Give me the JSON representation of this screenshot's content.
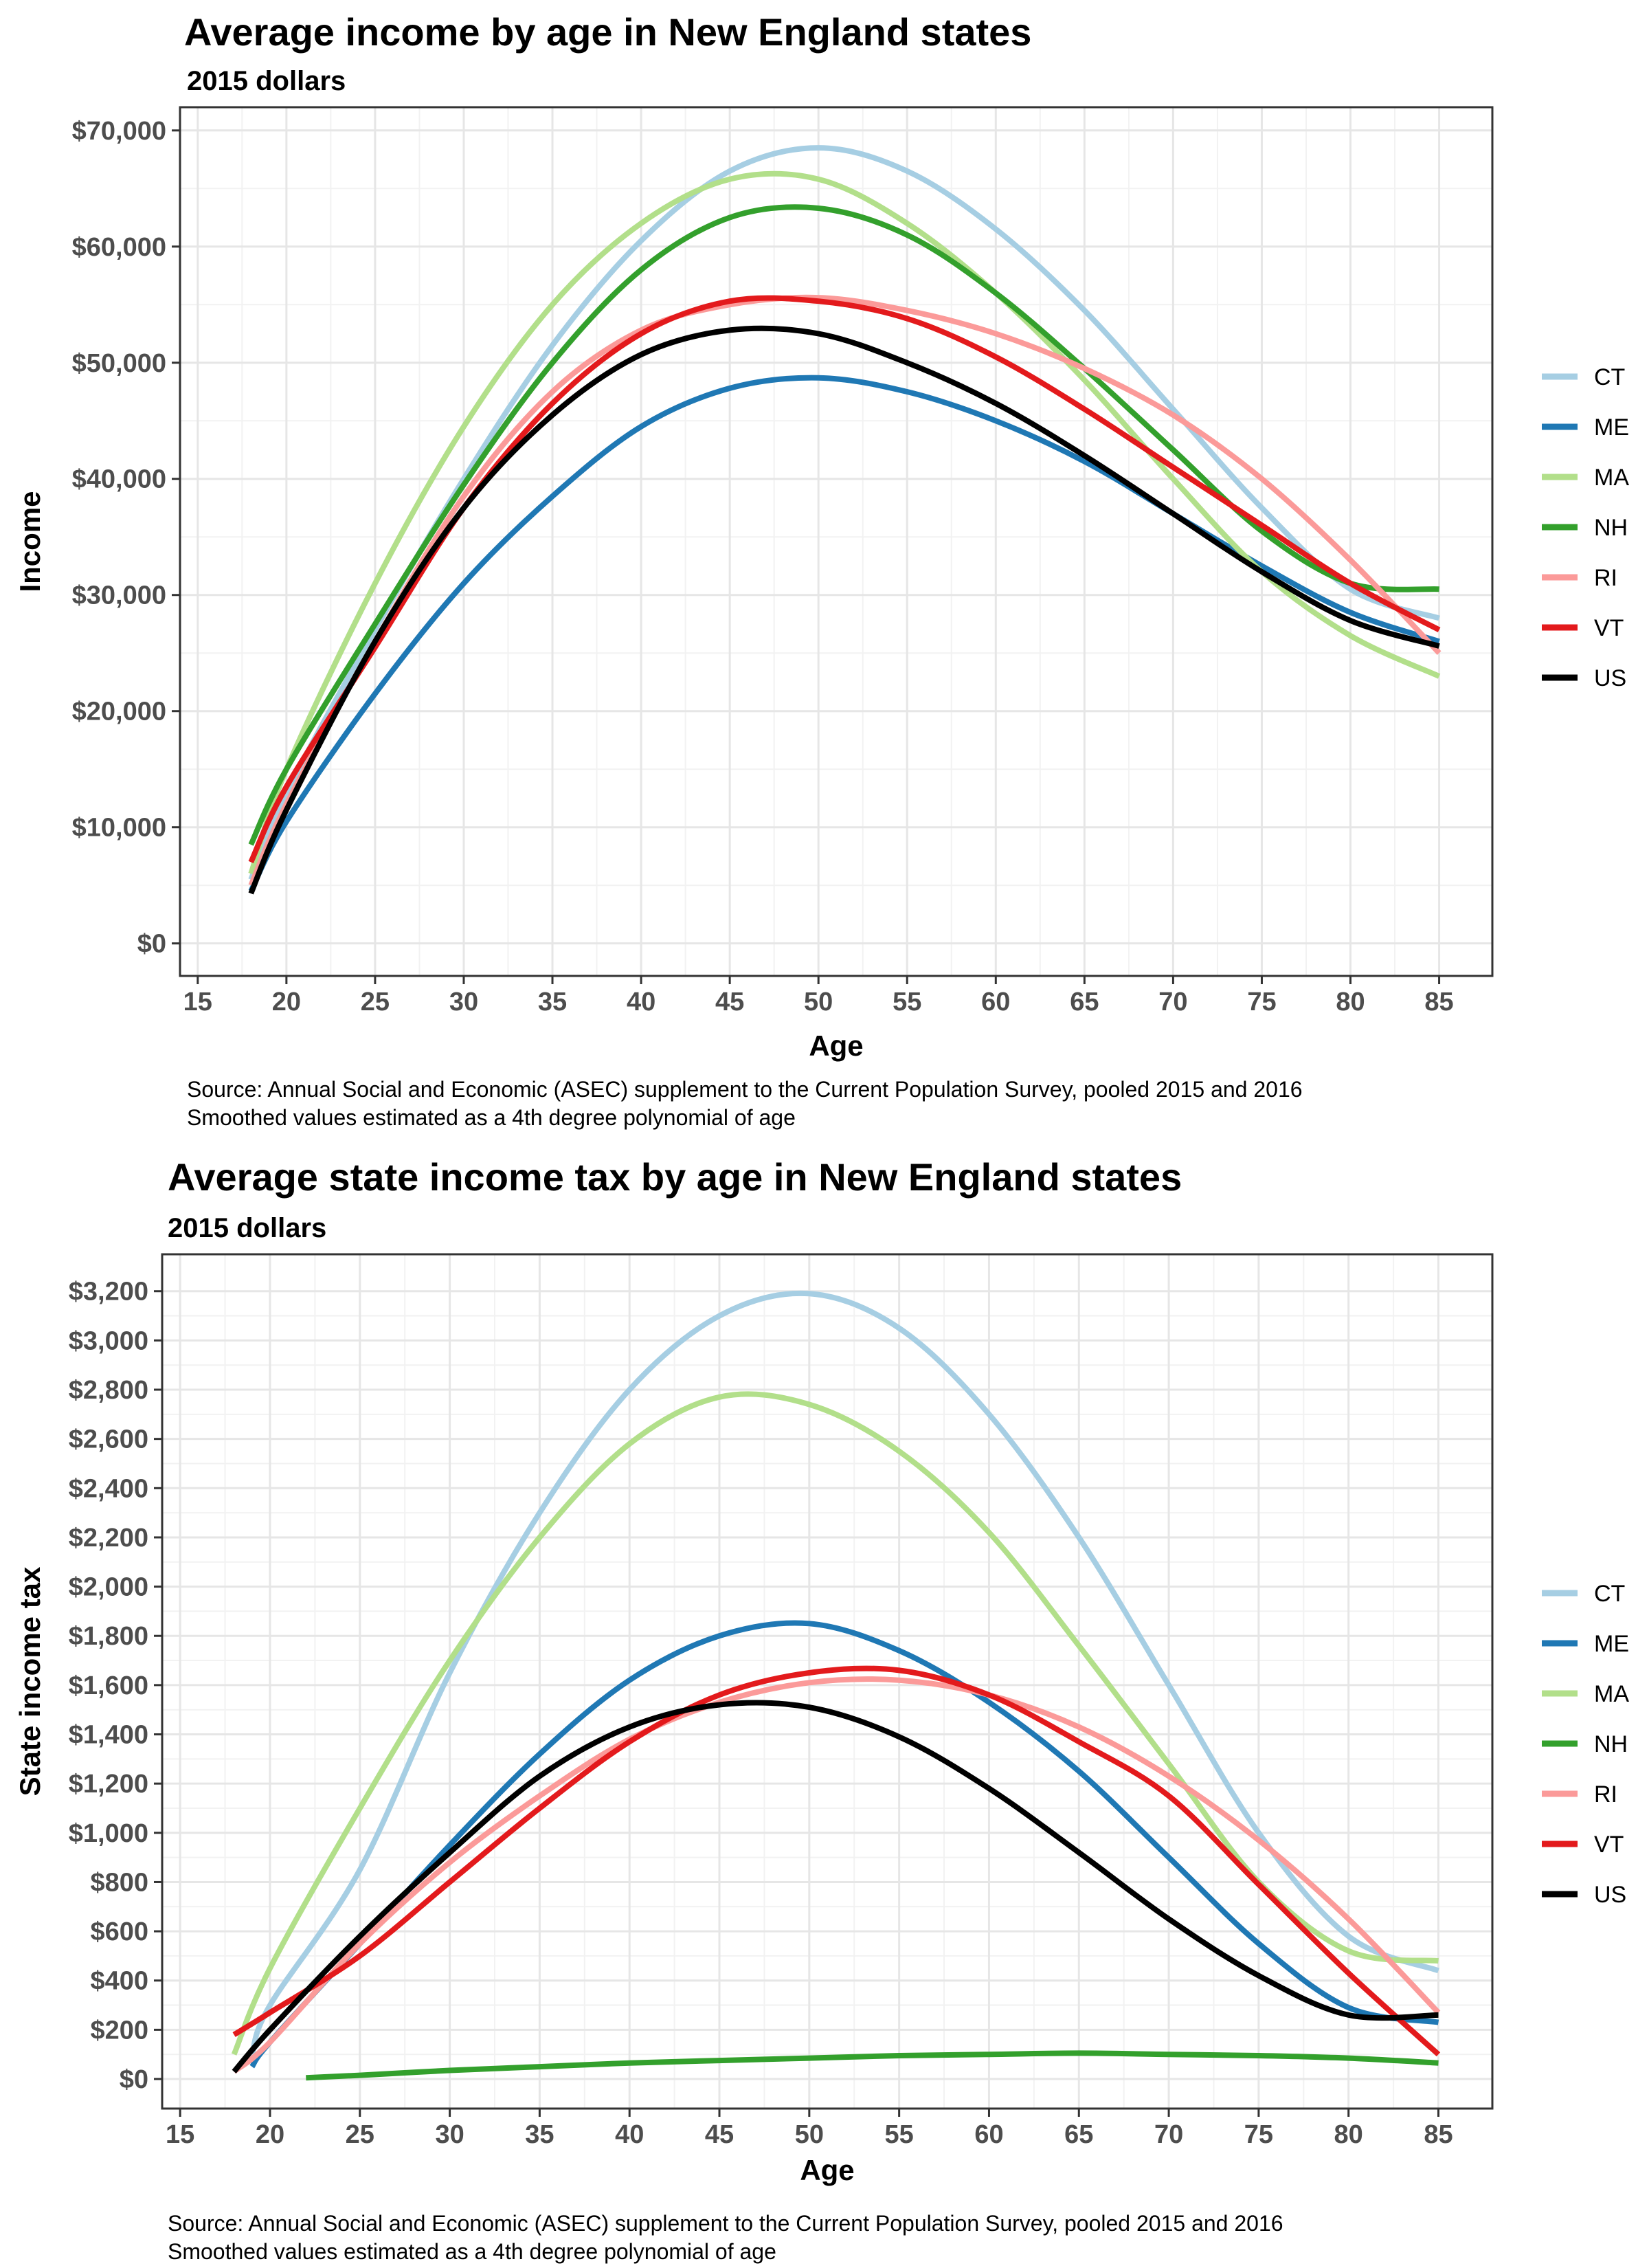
{
  "chart_data": [
    {
      "type": "line",
      "title": "Average income by age in New England states",
      "subtitle": "2015 dollars",
      "xlabel": "Age",
      "ylabel": "Income",
      "xlim": [
        14,
        88
      ],
      "ylim": [
        -2800,
        72000
      ],
      "xticks": [
        15,
        20,
        25,
        30,
        35,
        40,
        45,
        50,
        55,
        60,
        65,
        70,
        75,
        80,
        85
      ],
      "yticks": [
        0,
        10000,
        20000,
        30000,
        40000,
        50000,
        60000,
        70000
      ],
      "ytick_labels": [
        "$0",
        "$10,000",
        "$20,000",
        "$30,000",
        "$40,000",
        "$50,000",
        "$60,000",
        "$70,000"
      ],
      "grid": true,
      "legend": "right",
      "caption": [
        "Source: Annual Social and Economic (ASEC) supplement to the Current Population Survey, pooled 2015 and 2016",
        "Smoothed values estimated as a 4th degree polynomial of age"
      ],
      "series": [
        {
          "name": "CT",
          "color": "#a6cee3",
          "x": [
            18,
            20,
            25,
            30,
            35,
            40,
            45,
            50,
            55,
            60,
            65,
            70,
            75,
            80,
            85
          ],
          "y": [
            5500,
            13000,
            27000,
            40000,
            51500,
            60500,
            66500,
            68500,
            66500,
            61500,
            54500,
            46000,
            37500,
            30500,
            28000
          ]
        },
        {
          "name": "ME",
          "color": "#1f78b4",
          "x": [
            18,
            20,
            25,
            30,
            35,
            40,
            45,
            50,
            55,
            60,
            65,
            70,
            75,
            80,
            85
          ],
          "y": [
            4500,
            10500,
            21500,
            31000,
            38500,
            44500,
            47800,
            48700,
            47500,
            45000,
            41500,
            37000,
            32500,
            28500,
            26000
          ]
        },
        {
          "name": "MA",
          "color": "#b2df8a",
          "x": [
            18,
            20,
            25,
            30,
            35,
            40,
            45,
            50,
            55,
            60,
            65,
            70,
            75,
            80,
            85
          ],
          "y": [
            6000,
            15000,
            31000,
            44500,
            55000,
            62000,
            65800,
            65800,
            62000,
            56000,
            48500,
            40000,
            32000,
            26500,
            23000
          ]
        },
        {
          "name": "NH",
          "color": "#33a02c",
          "x": [
            18,
            20,
            25,
            30,
            35,
            40,
            45,
            50,
            55,
            60,
            65,
            70,
            75,
            80,
            85
          ],
          "y": [
            8500,
            15000,
            27500,
            39500,
            50000,
            58000,
            62500,
            63300,
            61000,
            56000,
            49500,
            42500,
            35500,
            31000,
            30500
          ]
        },
        {
          "name": "RI",
          "color": "#fb9a99",
          "x": [
            18,
            20,
            25,
            30,
            35,
            40,
            45,
            50,
            55,
            60,
            65,
            70,
            75,
            80,
            85
          ],
          "y": [
            5000,
            12000,
            26000,
            38500,
            47500,
            52800,
            55000,
            55600,
            54500,
            52500,
            49500,
            45500,
            40000,
            33000,
            25000
          ]
        },
        {
          "name": "VT",
          "color": "#e31a1c",
          "x": [
            18,
            20,
            25,
            30,
            35,
            40,
            45,
            50,
            55,
            60,
            65,
            70,
            75,
            80,
            85
          ],
          "y": [
            7000,
            13500,
            25500,
            37500,
            46500,
            52500,
            55300,
            55300,
            53800,
            50500,
            46000,
            41000,
            36000,
            31000,
            27000
          ]
        },
        {
          "name": "US",
          "color": "#000000",
          "x": [
            18,
            20,
            25,
            30,
            35,
            40,
            45,
            50,
            55,
            60,
            65,
            70,
            75,
            80,
            85
          ],
          "y": [
            4300,
            11500,
            26000,
            37500,
            45500,
            50700,
            52800,
            52500,
            50000,
            46500,
            42000,
            37000,
            32000,
            27800,
            25600
          ]
        }
      ]
    },
    {
      "type": "line",
      "title": "Average state income tax by age in New England states",
      "subtitle": "2015 dollars",
      "xlabel": "Age",
      "ylabel": "State income tax",
      "xlim": [
        14,
        88
      ],
      "ylim": [
        -120,
        3350
      ],
      "xticks": [
        15,
        20,
        25,
        30,
        35,
        40,
        45,
        50,
        55,
        60,
        65,
        70,
        75,
        80,
        85
      ],
      "yticks": [
        0,
        200,
        400,
        600,
        800,
        1000,
        1200,
        1400,
        1600,
        1800,
        2000,
        2200,
        2400,
        2600,
        2800,
        3000,
        3200
      ],
      "ytick_labels": [
        "$0",
        "$200",
        "$400",
        "$600",
        "$800",
        "$1,000",
        "$1,200",
        "$1,400",
        "$1,600",
        "$1,800",
        "$2,000",
        "$2,200",
        "$2,400",
        "$2,600",
        "$2,800",
        "$3,000",
        "$3,200"
      ],
      "grid": true,
      "legend": "right",
      "caption": [
        "Source: Annual Social and Economic (ASEC) supplement to the Current Population Survey, pooled 2015 and 2016",
        "Smoothed values estimated as a 4th degree polynomial of age"
      ],
      "series": [
        {
          "name": "CT",
          "color": "#a6cee3",
          "x": [
            19,
            20,
            25,
            30,
            35,
            40,
            45,
            50,
            55,
            60,
            65,
            70,
            75,
            80,
            85
          ],
          "y": [
            100,
            300,
            850,
            1650,
            2300,
            2800,
            3100,
            3190,
            3050,
            2700,
            2200,
            1600,
            1000,
            580,
            440
          ]
        },
        {
          "name": "ME",
          "color": "#1f78b4",
          "x": [
            19,
            20,
            25,
            30,
            35,
            40,
            45,
            50,
            55,
            60,
            65,
            70,
            75,
            80,
            85
          ],
          "y": [
            50,
            150,
            550,
            950,
            1320,
            1620,
            1800,
            1850,
            1740,
            1530,
            1250,
            900,
            550,
            290,
            230
          ]
        },
        {
          "name": "MA",
          "color": "#b2df8a",
          "x": [
            18,
            20,
            25,
            30,
            35,
            40,
            45,
            50,
            55,
            60,
            65,
            70,
            75,
            80,
            85
          ],
          "y": [
            100,
            450,
            1100,
            1700,
            2200,
            2580,
            2770,
            2740,
            2550,
            2220,
            1760,
            1280,
            800,
            520,
            480
          ]
        },
        {
          "name": "NH",
          "color": "#33a02c",
          "x": [
            22,
            25,
            30,
            35,
            40,
            45,
            50,
            55,
            60,
            65,
            70,
            75,
            80,
            85
          ],
          "y": [
            5,
            15,
            35,
            50,
            65,
            75,
            85,
            95,
            100,
            105,
            100,
            95,
            85,
            65
          ]
        },
        {
          "name": "RI",
          "color": "#fb9a99",
          "x": [
            18,
            20,
            25,
            30,
            35,
            40,
            45,
            50,
            55,
            60,
            65,
            70,
            75,
            80,
            85
          ],
          "y": [
            30,
            150,
            550,
            880,
            1150,
            1380,
            1530,
            1610,
            1620,
            1560,
            1430,
            1230,
            970,
            650,
            270
          ]
        },
        {
          "name": "VT",
          "color": "#e31a1c",
          "x": [
            18,
            20,
            25,
            30,
            35,
            40,
            45,
            50,
            55,
            60,
            65,
            70,
            75,
            80,
            85
          ],
          "y": [
            180,
            270,
            500,
            800,
            1100,
            1370,
            1560,
            1650,
            1660,
            1560,
            1370,
            1150,
            790,
            430,
            100
          ]
        },
        {
          "name": "US",
          "color": "#000000",
          "x": [
            18,
            20,
            25,
            30,
            35,
            40,
            45,
            50,
            55,
            60,
            65,
            70,
            75,
            80,
            85
          ],
          "y": [
            30,
            200,
            580,
            920,
            1230,
            1430,
            1520,
            1510,
            1390,
            1180,
            920,
            650,
            420,
            260,
            260
          ]
        }
      ]
    }
  ]
}
